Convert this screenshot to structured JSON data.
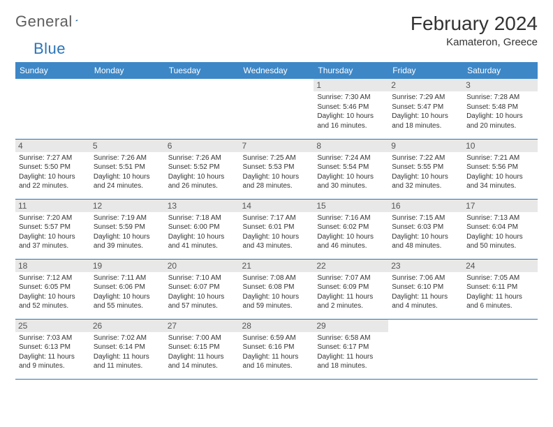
{
  "logo": {
    "word1": "General",
    "word2": "Blue"
  },
  "title": "February 2024",
  "location": "Kamateron, Greece",
  "colors": {
    "header_bg": "#3d87c7",
    "header_text": "#ffffff",
    "rule": "#2b74b8",
    "daynum_bg": "#e8e8e8",
    "logo_gray": "#5e5e5e",
    "logo_blue": "#2b74b8"
  },
  "day_names": [
    "Sunday",
    "Monday",
    "Tuesday",
    "Wednesday",
    "Thursday",
    "Friday",
    "Saturday"
  ],
  "weeks": [
    [
      null,
      null,
      null,
      null,
      {
        "n": "1",
        "sr": "7:30 AM",
        "ss": "5:46 PM",
        "dl": "10 hours and 16 minutes."
      },
      {
        "n": "2",
        "sr": "7:29 AM",
        "ss": "5:47 PM",
        "dl": "10 hours and 18 minutes."
      },
      {
        "n": "3",
        "sr": "7:28 AM",
        "ss": "5:48 PM",
        "dl": "10 hours and 20 minutes."
      }
    ],
    [
      {
        "n": "4",
        "sr": "7:27 AM",
        "ss": "5:50 PM",
        "dl": "10 hours and 22 minutes."
      },
      {
        "n": "5",
        "sr": "7:26 AM",
        "ss": "5:51 PM",
        "dl": "10 hours and 24 minutes."
      },
      {
        "n": "6",
        "sr": "7:26 AM",
        "ss": "5:52 PM",
        "dl": "10 hours and 26 minutes."
      },
      {
        "n": "7",
        "sr": "7:25 AM",
        "ss": "5:53 PM",
        "dl": "10 hours and 28 minutes."
      },
      {
        "n": "8",
        "sr": "7:24 AM",
        "ss": "5:54 PM",
        "dl": "10 hours and 30 minutes."
      },
      {
        "n": "9",
        "sr": "7:22 AM",
        "ss": "5:55 PM",
        "dl": "10 hours and 32 minutes."
      },
      {
        "n": "10",
        "sr": "7:21 AM",
        "ss": "5:56 PM",
        "dl": "10 hours and 34 minutes."
      }
    ],
    [
      {
        "n": "11",
        "sr": "7:20 AM",
        "ss": "5:57 PM",
        "dl": "10 hours and 37 minutes."
      },
      {
        "n": "12",
        "sr": "7:19 AM",
        "ss": "5:59 PM",
        "dl": "10 hours and 39 minutes."
      },
      {
        "n": "13",
        "sr": "7:18 AM",
        "ss": "6:00 PM",
        "dl": "10 hours and 41 minutes."
      },
      {
        "n": "14",
        "sr": "7:17 AM",
        "ss": "6:01 PM",
        "dl": "10 hours and 43 minutes."
      },
      {
        "n": "15",
        "sr": "7:16 AM",
        "ss": "6:02 PM",
        "dl": "10 hours and 46 minutes."
      },
      {
        "n": "16",
        "sr": "7:15 AM",
        "ss": "6:03 PM",
        "dl": "10 hours and 48 minutes."
      },
      {
        "n": "17",
        "sr": "7:13 AM",
        "ss": "6:04 PM",
        "dl": "10 hours and 50 minutes."
      }
    ],
    [
      {
        "n": "18",
        "sr": "7:12 AM",
        "ss": "6:05 PM",
        "dl": "10 hours and 52 minutes."
      },
      {
        "n": "19",
        "sr": "7:11 AM",
        "ss": "6:06 PM",
        "dl": "10 hours and 55 minutes."
      },
      {
        "n": "20",
        "sr": "7:10 AM",
        "ss": "6:07 PM",
        "dl": "10 hours and 57 minutes."
      },
      {
        "n": "21",
        "sr": "7:08 AM",
        "ss": "6:08 PM",
        "dl": "10 hours and 59 minutes."
      },
      {
        "n": "22",
        "sr": "7:07 AM",
        "ss": "6:09 PM",
        "dl": "11 hours and 2 minutes."
      },
      {
        "n": "23",
        "sr": "7:06 AM",
        "ss": "6:10 PM",
        "dl": "11 hours and 4 minutes."
      },
      {
        "n": "24",
        "sr": "7:05 AM",
        "ss": "6:11 PM",
        "dl": "11 hours and 6 minutes."
      }
    ],
    [
      {
        "n": "25",
        "sr": "7:03 AM",
        "ss": "6:13 PM",
        "dl": "11 hours and 9 minutes."
      },
      {
        "n": "26",
        "sr": "7:02 AM",
        "ss": "6:14 PM",
        "dl": "11 hours and 11 minutes."
      },
      {
        "n": "27",
        "sr": "7:00 AM",
        "ss": "6:15 PM",
        "dl": "11 hours and 14 minutes."
      },
      {
        "n": "28",
        "sr": "6:59 AM",
        "ss": "6:16 PM",
        "dl": "11 hours and 16 minutes."
      },
      {
        "n": "29",
        "sr": "6:58 AM",
        "ss": "6:17 PM",
        "dl": "11 hours and 18 minutes."
      },
      null,
      null
    ]
  ],
  "labels": {
    "sunrise": "Sunrise:",
    "sunset": "Sunset:",
    "daylight": "Daylight:"
  }
}
